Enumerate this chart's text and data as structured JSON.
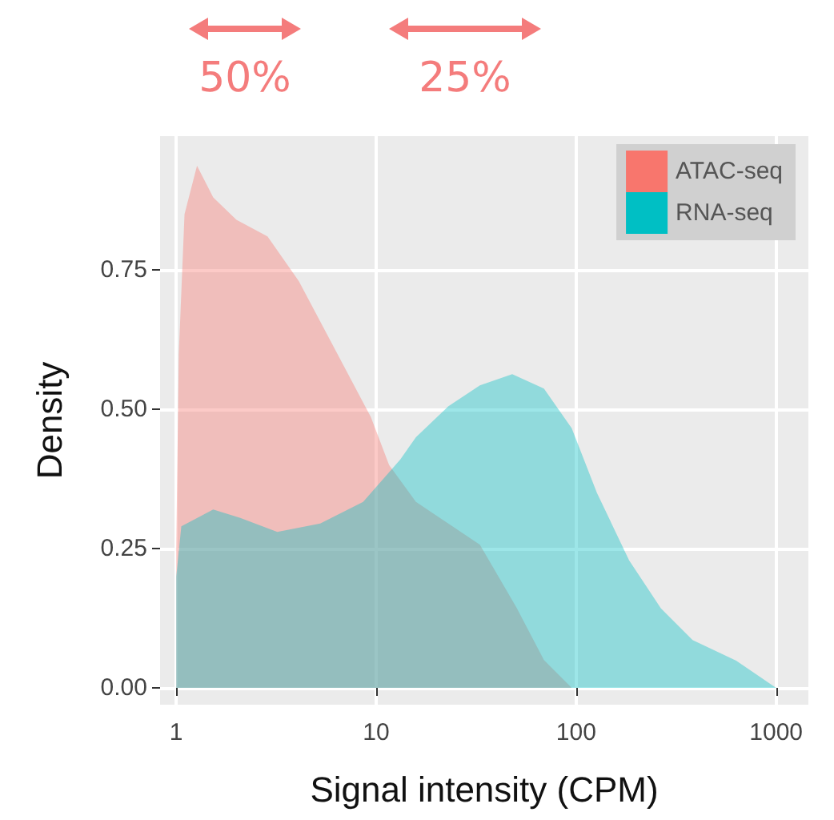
{
  "chart_data": {
    "type": "area",
    "xlabel": "Signal intensity (CPM)",
    "ylabel": "Density",
    "annotations": [
      "50%",
      "25%"
    ],
    "log": "x",
    "xlim": [
      0.83,
      1450
    ],
    "xticks": [
      1,
      10,
      100,
      1000
    ],
    "ylim": [
      -0.03,
      0.99
    ],
    "yticks": [
      {
        "value": 0,
        "label": "0.00"
      },
      {
        "value": 0.25,
        "label": "0.25"
      },
      {
        "value": 0.5,
        "label": "0.50"
      },
      {
        "value": 0.75,
        "label": "0.75"
      }
    ],
    "grid": true,
    "legend": "top right",
    "series": [
      {
        "name": "ATAC-seq",
        "color": "#f8766d",
        "x": [
          1.0,
          1.03,
          1.1,
          1.27,
          1.53,
          2.0,
          2.86,
          4.1,
          5.96,
          9.4,
          11.6,
          15.8,
          33,
          50.5,
          69,
          95
        ],
        "values": [
          0.25,
          0.6,
          0.85,
          0.937,
          0.88,
          0.84,
          0.81,
          0.73,
          0.62,
          0.486,
          0.4,
          0.334,
          0.257,
          0.143,
          0.05,
          0
        ]
      },
      {
        "name": "RNA-seq",
        "color": "#00bfc4",
        "x": [
          1.0,
          1.06,
          1.53,
          2.09,
          3.2,
          5.25,
          8.6,
          13.2,
          15.8,
          22.9,
          33,
          47.9,
          69,
          95,
          127,
          184,
          265,
          382,
          631,
          1000
        ],
        "values": [
          0.2,
          0.29,
          0.32,
          0.305,
          0.28,
          0.295,
          0.334,
          0.41,
          0.45,
          0.505,
          0.543,
          0.563,
          0.537,
          0.466,
          0.35,
          0.229,
          0.143,
          0.086,
          0.049,
          0
        ]
      }
    ]
  }
}
